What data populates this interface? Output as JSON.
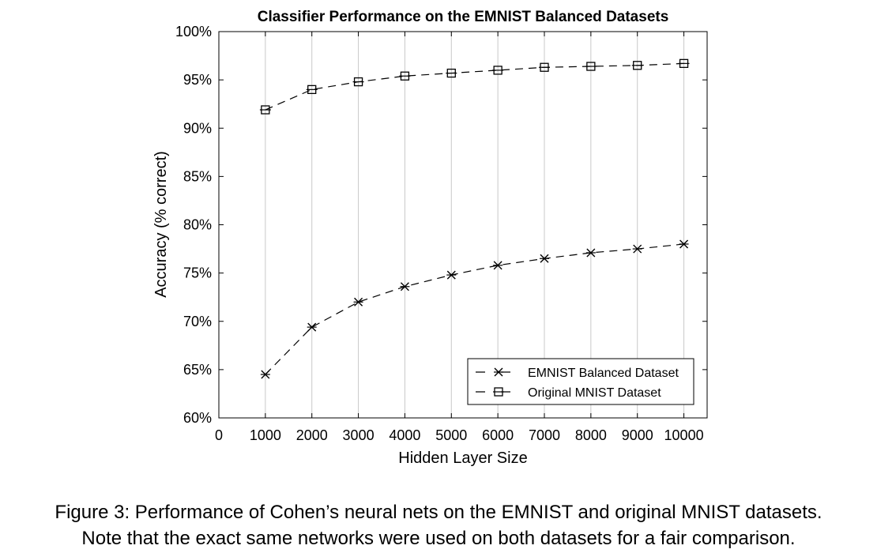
{
  "chart_data": {
    "type": "line",
    "title": "Classifier Performance on the EMNIST Balanced Datasets",
    "xlabel": "Hidden Layer Size",
    "ylabel": "Accuracy (% correct)",
    "xlim": [
      0,
      10500
    ],
    "ylim": [
      60,
      100
    ],
    "x_ticks": [
      0,
      1000,
      2000,
      3000,
      4000,
      5000,
      6000,
      7000,
      8000,
      9000,
      10000
    ],
    "x_tick_labels": [
      "0",
      "1000",
      "2000",
      "3000",
      "4000",
      "5000",
      "6000",
      "7000",
      "8000",
      "9000",
      "10000"
    ],
    "y_ticks": [
      60,
      65,
      70,
      75,
      80,
      85,
      90,
      95,
      100
    ],
    "y_tick_labels": [
      "60%",
      "65%",
      "70%",
      "75%",
      "80%",
      "85%",
      "90%",
      "95%",
      "100%"
    ],
    "grid": "vertical",
    "legend_position": "bottom-right",
    "x": [
      1000,
      2000,
      3000,
      4000,
      5000,
      6000,
      7000,
      8000,
      9000,
      10000
    ],
    "series": [
      {
        "name": "EMNIST Balanced Dataset",
        "marker": "x",
        "line_style": "dashed",
        "values": [
          64.5,
          69.4,
          72.0,
          73.6,
          74.8,
          75.8,
          76.5,
          77.1,
          77.5,
          78.0
        ]
      },
      {
        "name": "Original MNIST Dataset",
        "marker": "square",
        "line_style": "dashed",
        "values": [
          91.9,
          94.0,
          94.8,
          95.4,
          95.7,
          96.0,
          96.3,
          96.4,
          96.5,
          96.7
        ]
      }
    ]
  },
  "caption": {
    "line1": "Figure 3: Performance of Cohen’s neural nets on the EMNIST and original MNIST datasets.",
    "line2": "Note that the exact same networks were used on both datasets for a fair comparison."
  }
}
